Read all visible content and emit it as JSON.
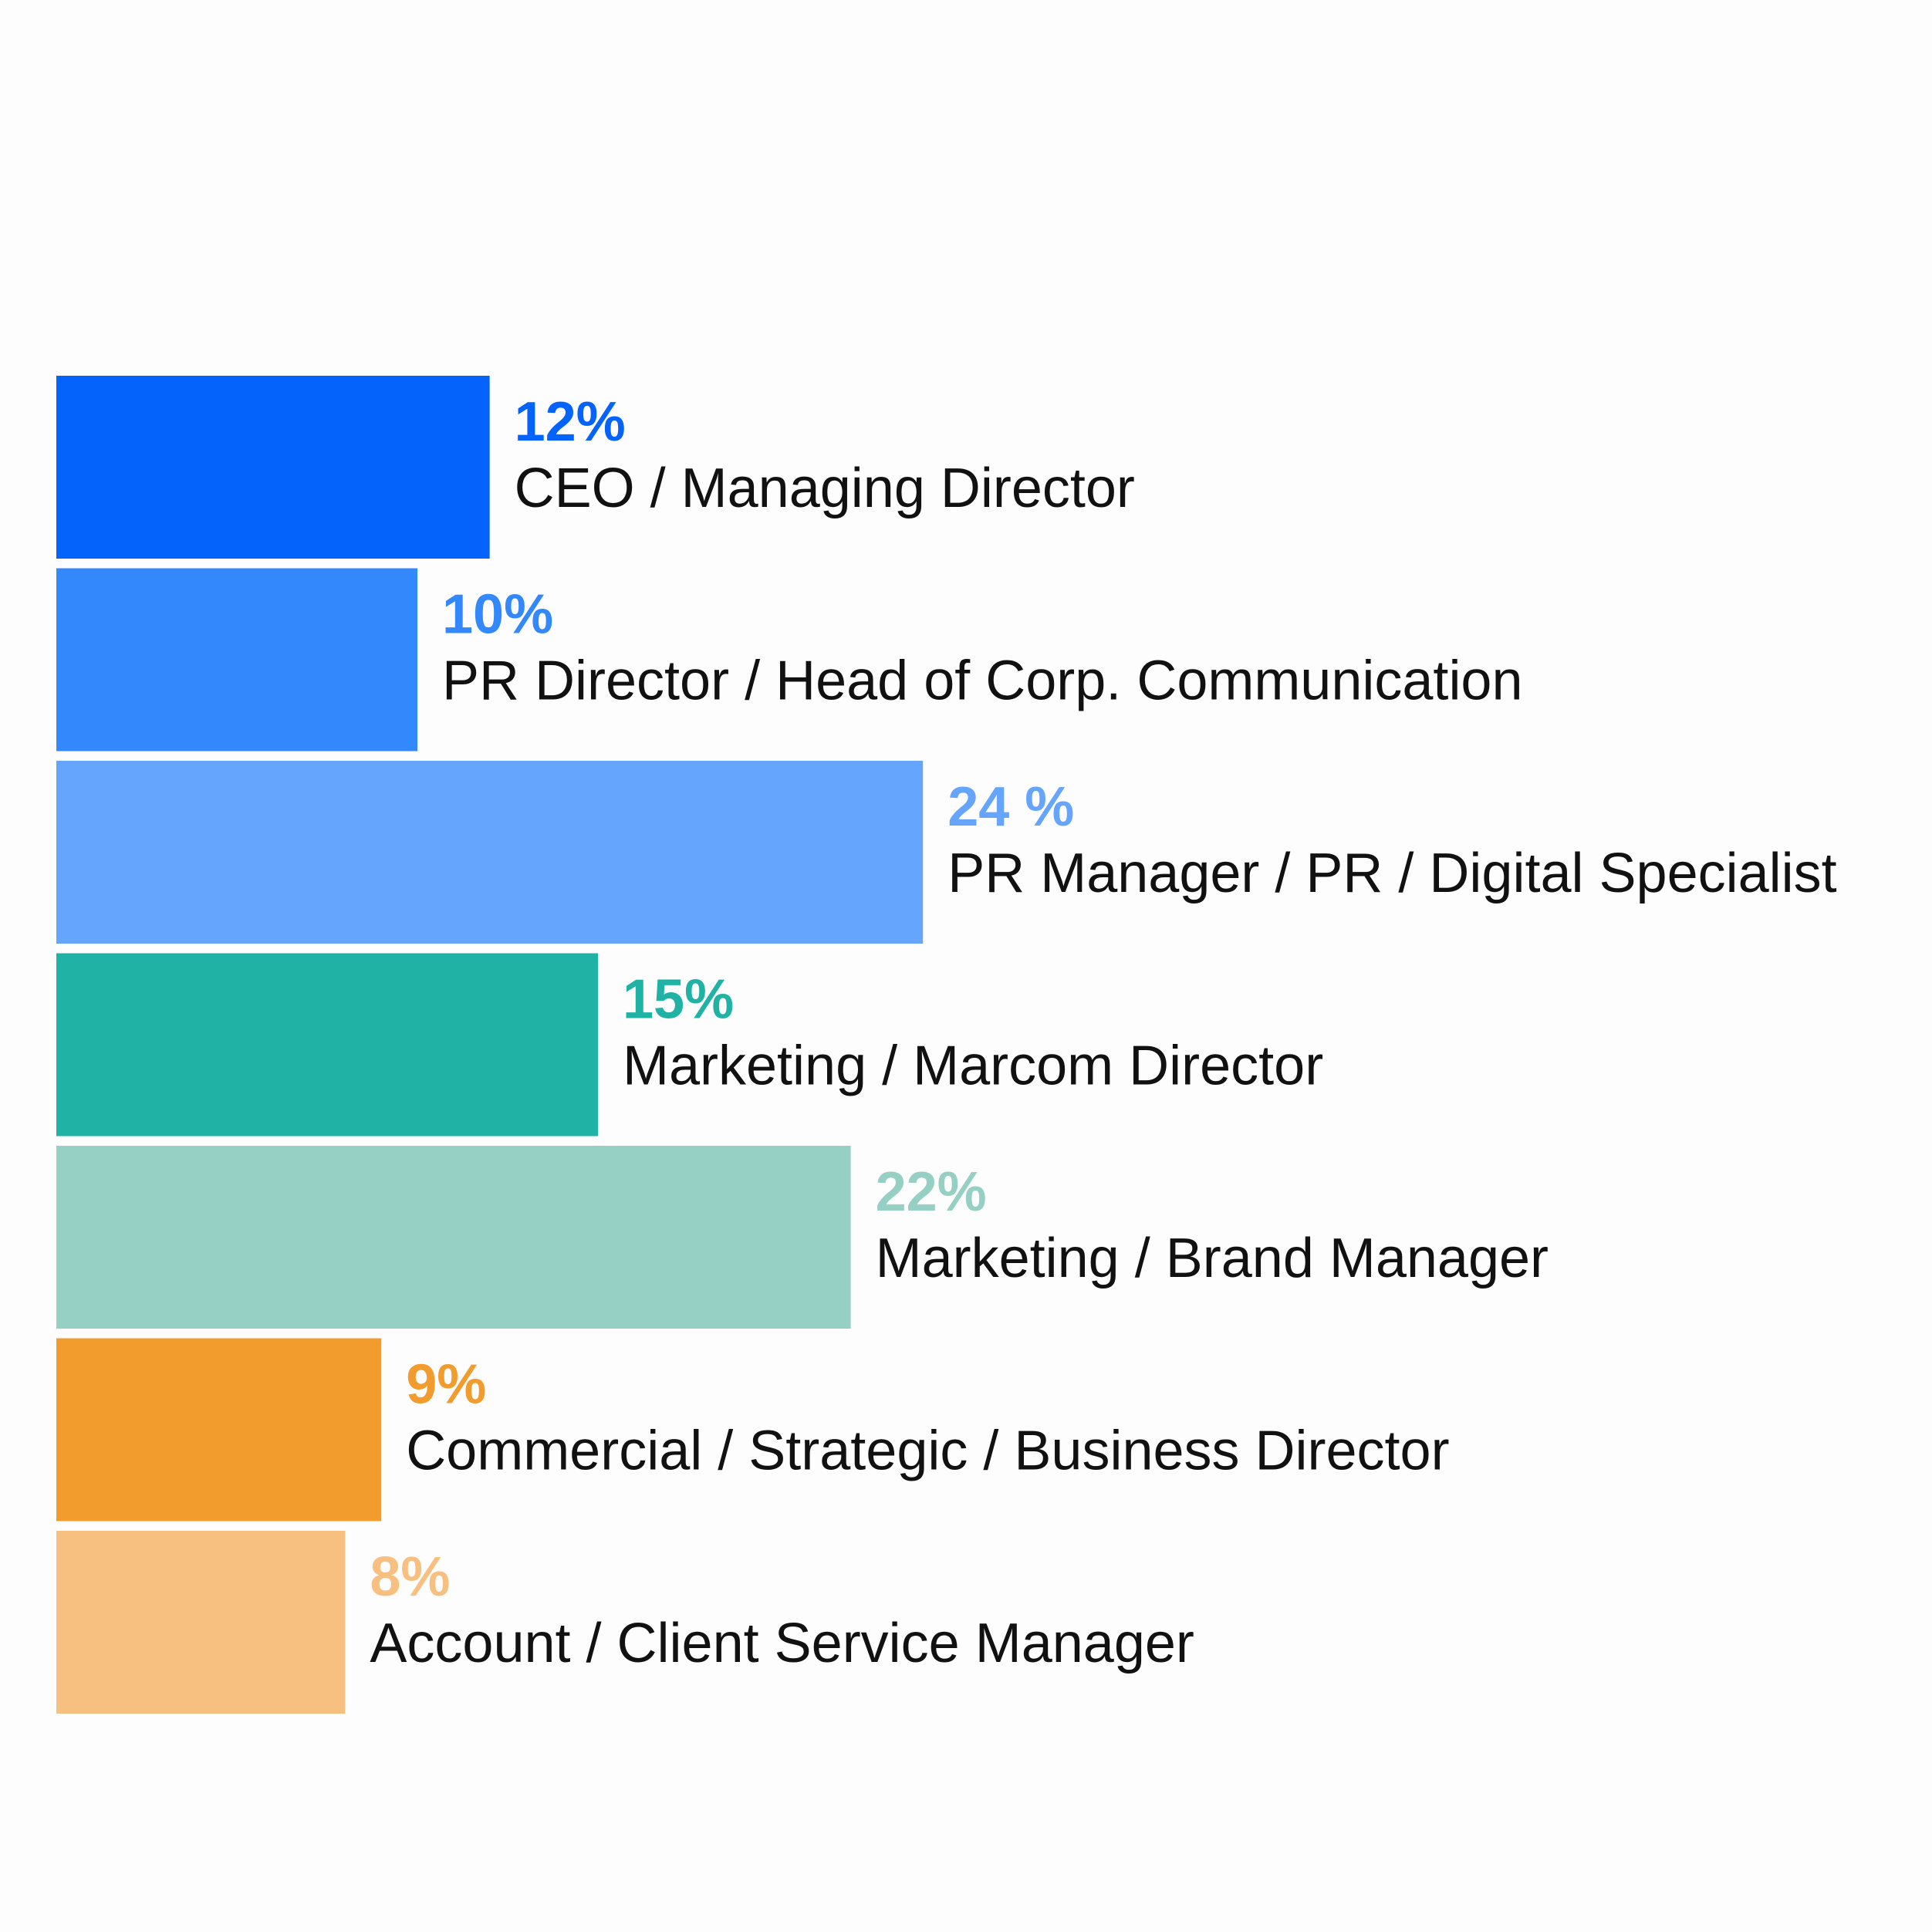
{
  "chart_data": {
    "type": "bar",
    "orientation": "horizontal",
    "title": "",
    "xlabel": "",
    "ylabel": "",
    "grid": false,
    "legend": "none",
    "xlim": [
      0,
      24
    ],
    "categories": [
      "CEO / Managing Director",
      "PR Director / Head of Corp. Communication",
      "PR Manager / PR / Digital Specialist",
      "Marketing / Marcom Director",
      "Marketing / Brand Manager",
      "Commercial / Strategic / Business Director",
      "Account / Client Service Manager"
    ],
    "values": [
      12,
      10,
      24,
      15,
      22,
      9,
      8
    ],
    "value_labels": [
      "12%",
      "10%",
      "24 %",
      "15%",
      "22%",
      "9%",
      "8%"
    ],
    "colors": [
      "#0463fb",
      "#3388fb",
      "#66a5fd",
      "#20b2a4",
      "#96cfc3",
      "#f19c2c",
      "#f8c080"
    ],
    "category_label_color": "#111111"
  }
}
